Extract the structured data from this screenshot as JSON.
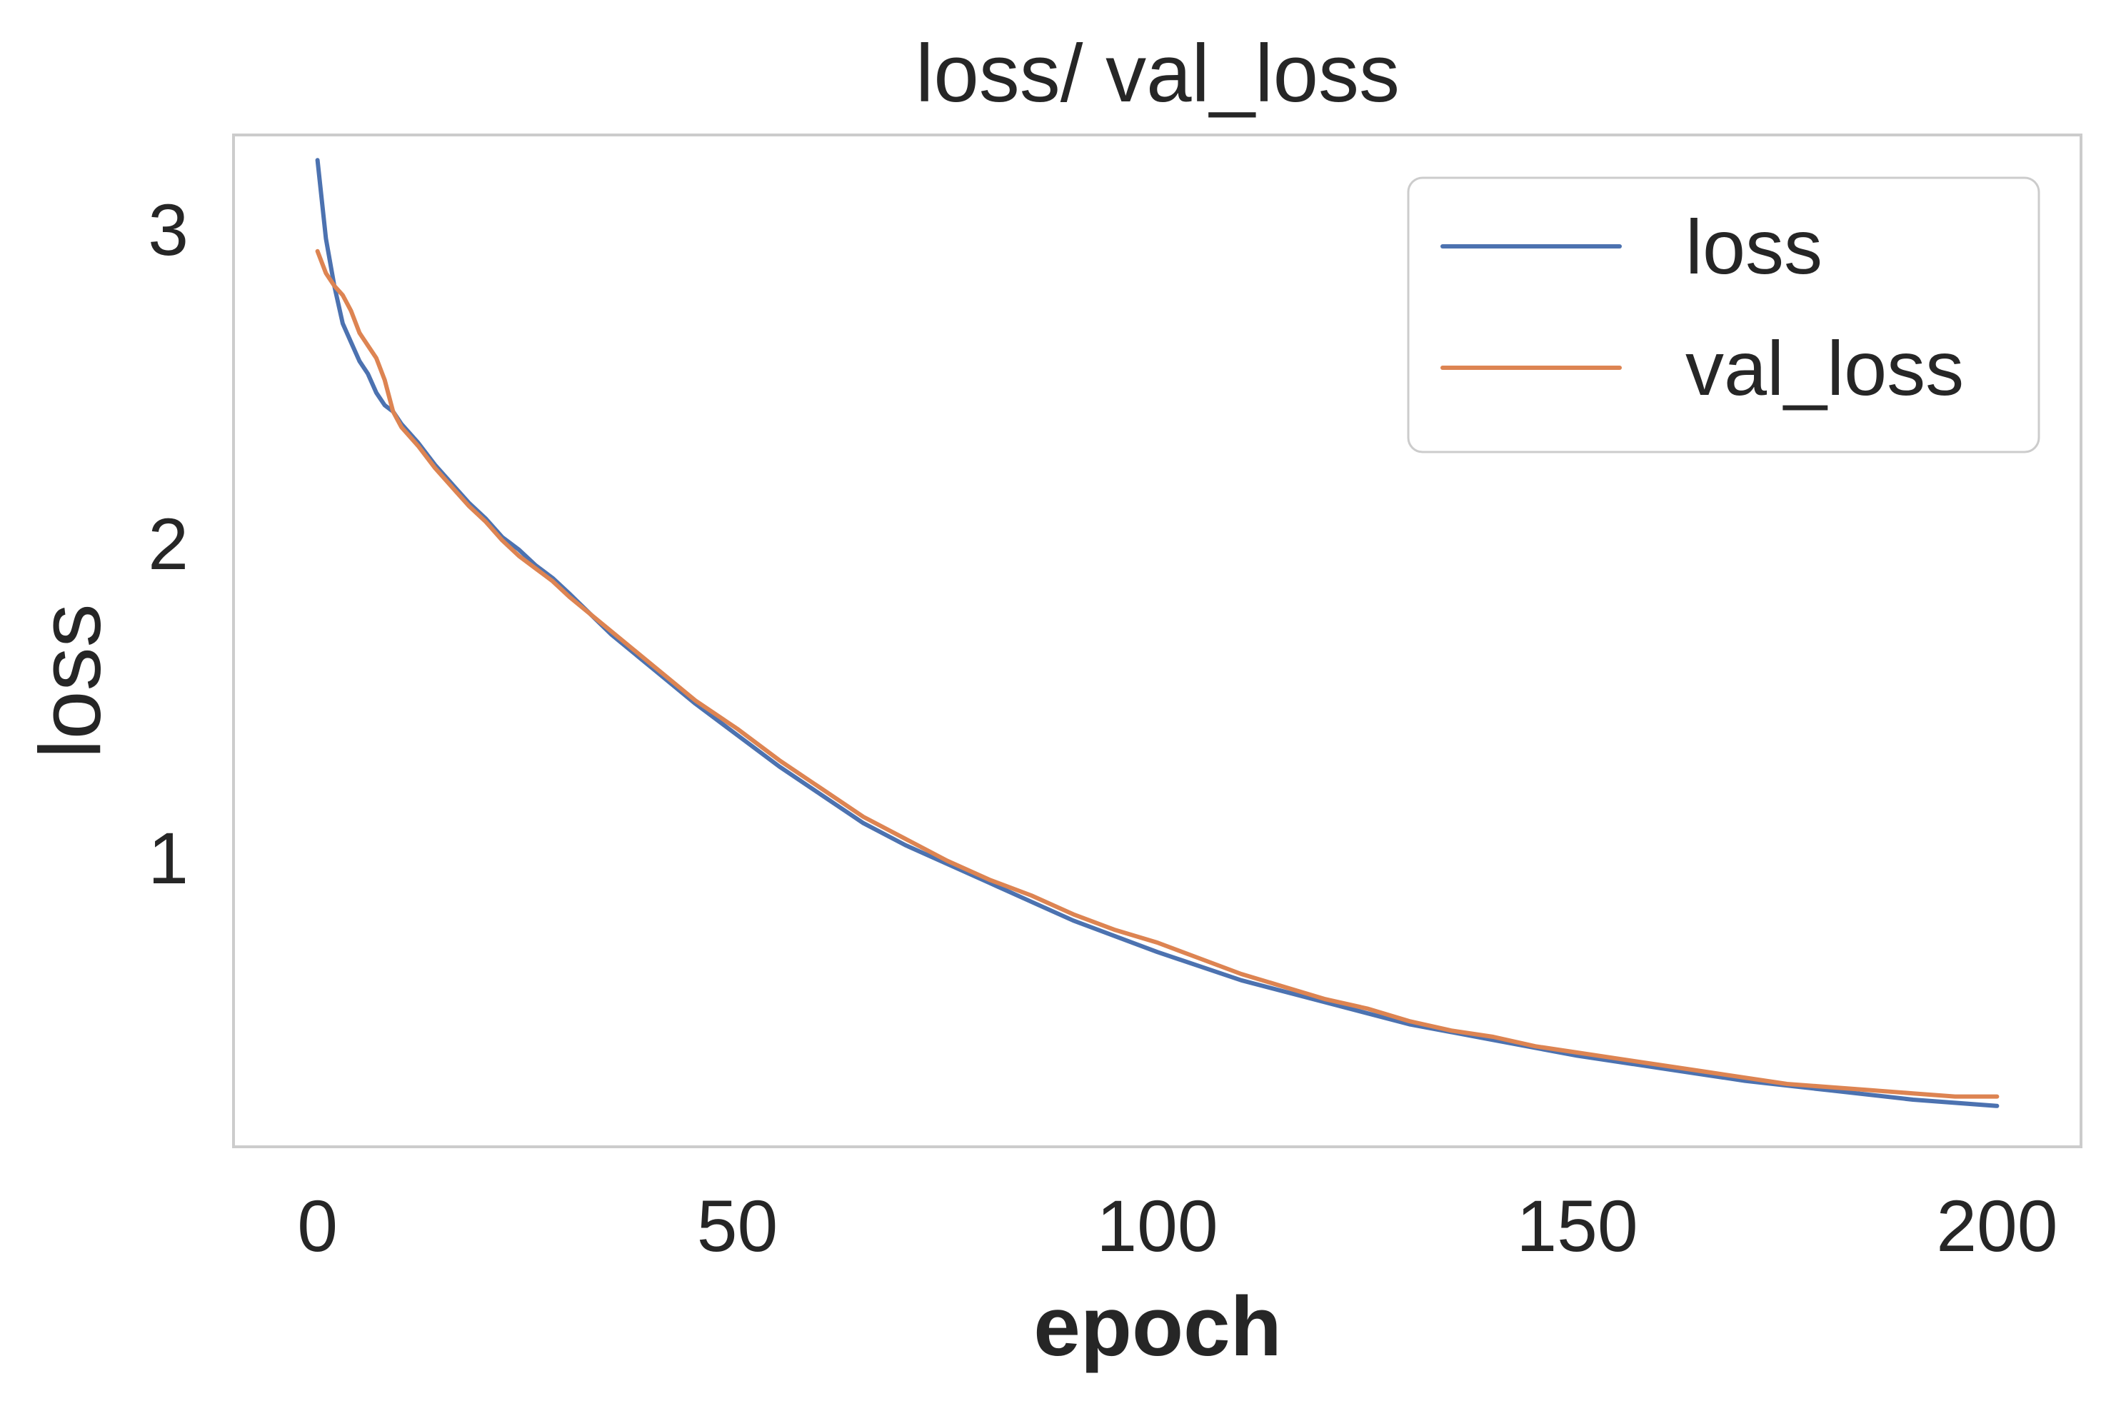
{
  "chart_data": {
    "type": "line",
    "title": "loss/ val_loss",
    "xlabel": "epoch",
    "ylabel": "loss",
    "xlim": [
      -10,
      210
    ],
    "ylim": [
      0.08,
      3.3
    ],
    "xticks": [
      0,
      50,
      100,
      150,
      200
    ],
    "xtick_labels": [
      "0",
      "50",
      "100",
      "150",
      "200"
    ],
    "yticks": [
      1,
      2,
      3
    ],
    "ytick_labels": [
      "1",
      "2",
      "3"
    ],
    "grid": false,
    "legend": "top-right",
    "series": [
      {
        "name": "loss",
        "color": "#4c72b0",
        "x": [
          0,
          1,
          2,
          3,
          4,
          5,
          6,
          7,
          8,
          9,
          10,
          12,
          14,
          16,
          18,
          20,
          22,
          24,
          26,
          28,
          30,
          35,
          40,
          45,
          50,
          55,
          60,
          65,
          70,
          75,
          80,
          85,
          90,
          95,
          100,
          110,
          120,
          130,
          140,
          150,
          160,
          170,
          180,
          190,
          200
        ],
        "y": [
          3.22,
          2.97,
          2.82,
          2.7,
          2.64,
          2.58,
          2.54,
          2.48,
          2.44,
          2.42,
          2.38,
          2.32,
          2.25,
          2.19,
          2.13,
          2.08,
          2.02,
          1.98,
          1.93,
          1.89,
          1.84,
          1.71,
          1.6,
          1.49,
          1.39,
          1.29,
          1.2,
          1.11,
          1.04,
          0.98,
          0.92,
          0.86,
          0.8,
          0.75,
          0.7,
          0.61,
          0.54,
          0.47,
          0.42,
          0.37,
          0.33,
          0.29,
          0.26,
          0.23,
          0.21
        ]
      },
      {
        "name": "val_loss",
        "color": "#dd8452",
        "x": [
          0,
          1,
          2,
          3,
          4,
          5,
          6,
          7,
          8,
          9,
          10,
          12,
          14,
          16,
          18,
          20,
          22,
          24,
          26,
          28,
          30,
          35,
          40,
          45,
          50,
          55,
          60,
          65,
          70,
          75,
          80,
          85,
          90,
          95,
          100,
          105,
          110,
          115,
          120,
          125,
          130,
          135,
          140,
          145,
          150,
          155,
          160,
          165,
          170,
          175,
          180,
          185,
          190,
          195,
          200
        ],
        "y": [
          2.93,
          2.86,
          2.82,
          2.79,
          2.74,
          2.67,
          2.63,
          2.59,
          2.52,
          2.42,
          2.37,
          2.31,
          2.24,
          2.18,
          2.12,
          2.07,
          2.01,
          1.96,
          1.92,
          1.88,
          1.83,
          1.72,
          1.61,
          1.5,
          1.41,
          1.31,
          1.22,
          1.13,
          1.06,
          0.99,
          0.93,
          0.88,
          0.82,
          0.77,
          0.73,
          0.68,
          0.63,
          0.59,
          0.55,
          0.52,
          0.48,
          0.45,
          0.43,
          0.4,
          0.38,
          0.36,
          0.34,
          0.32,
          0.3,
          0.28,
          0.27,
          0.26,
          0.25,
          0.24,
          0.24
        ]
      }
    ]
  }
}
